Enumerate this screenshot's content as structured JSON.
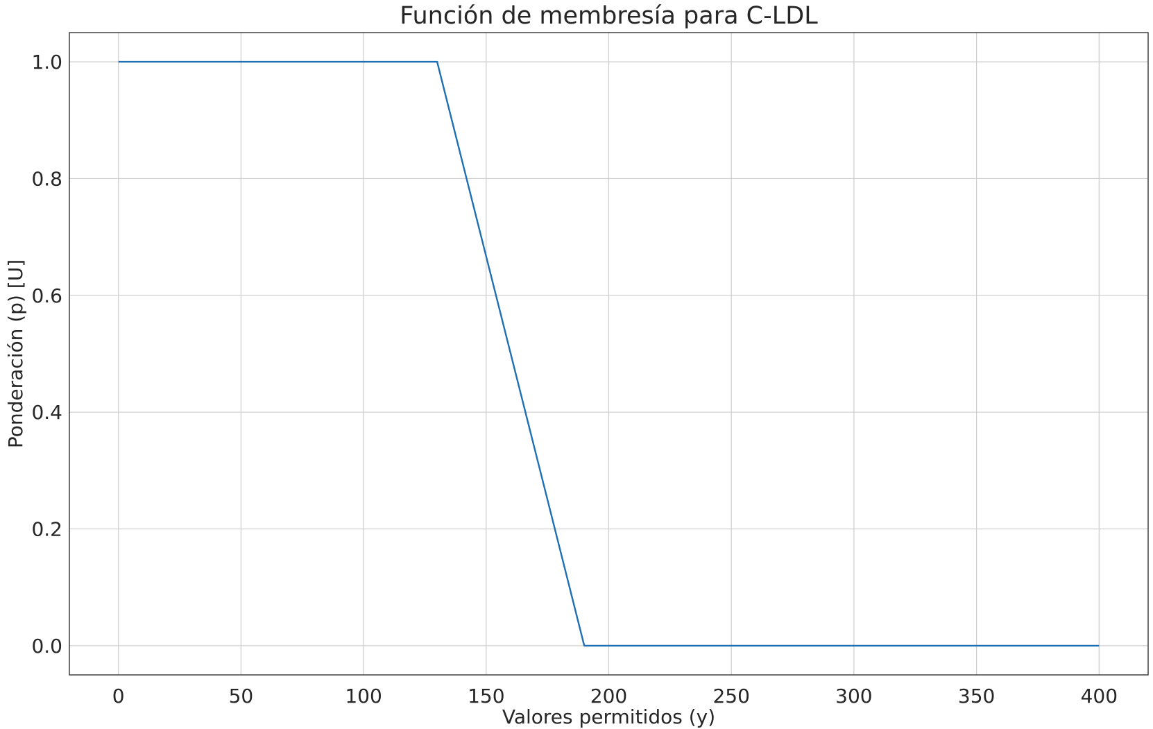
{
  "chart_data": {
    "type": "line",
    "title": "Función de membresía para C-LDL",
    "xlabel": "Valores permitidos (y)",
    "ylabel": "Ponderación (p) [U]",
    "xlim": [
      -20,
      420
    ],
    "ylim": [
      -0.05,
      1.05
    ],
    "xticks": [
      0,
      50,
      100,
      150,
      200,
      250,
      300,
      350,
      400
    ],
    "xtick_labels": [
      "0",
      "50",
      "100",
      "150",
      "200",
      "250",
      "300",
      "350",
      "400"
    ],
    "yticks": [
      0.0,
      0.2,
      0.4,
      0.6,
      0.8,
      1.0
    ],
    "ytick_labels": [
      "0.0",
      "0.2",
      "0.4",
      "0.6",
      "0.8",
      "1.0"
    ],
    "grid": true,
    "series": [
      {
        "color": "#1f6fb4",
        "x": [
          0,
          130,
          190,
          400
        ],
        "y": [
          1.0,
          1.0,
          0.0,
          0.0
        ]
      }
    ]
  }
}
